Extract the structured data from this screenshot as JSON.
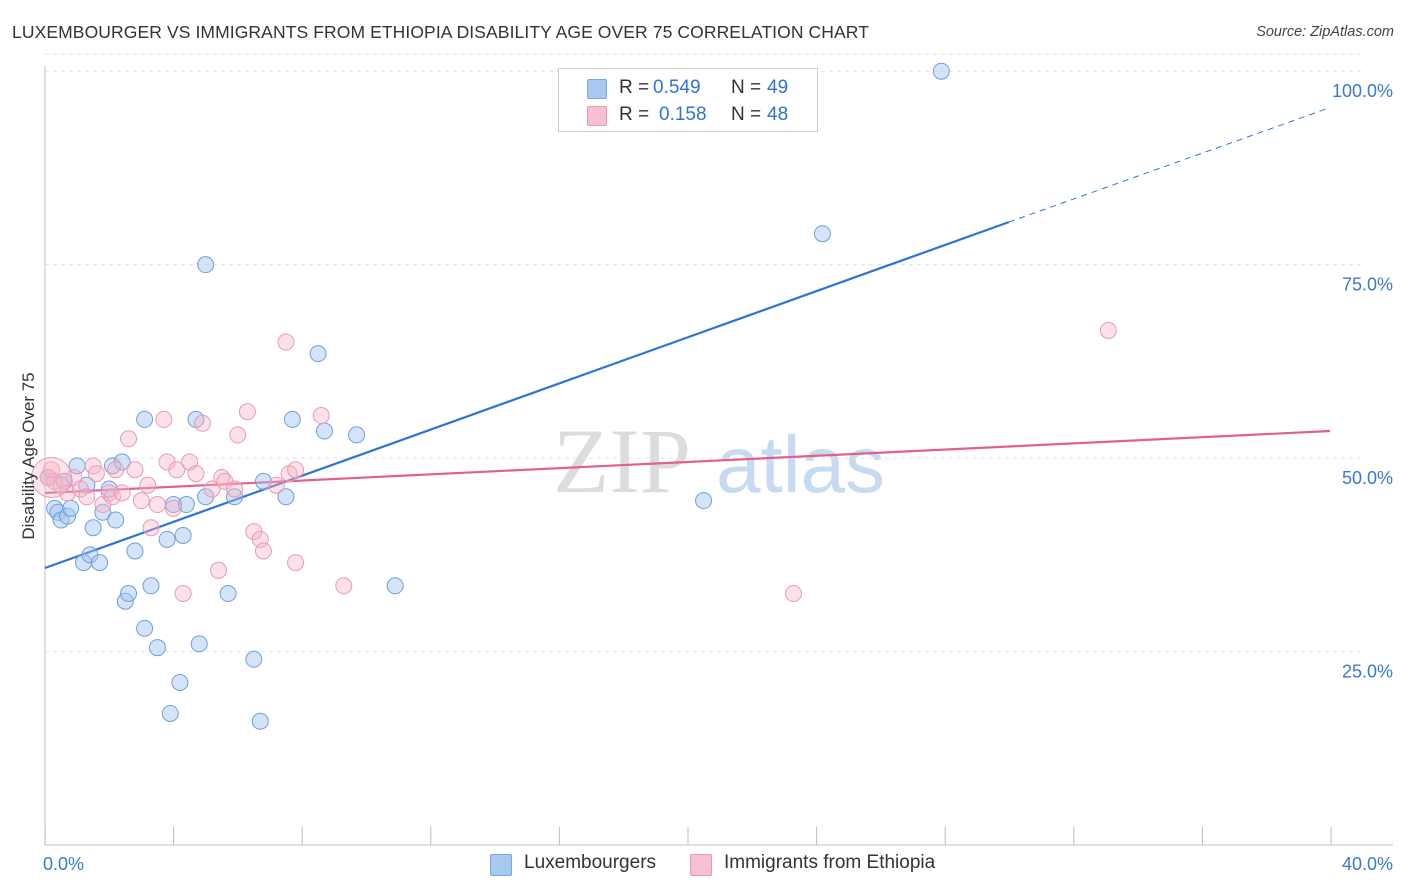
{
  "title": "LUXEMBOURGER VS IMMIGRANTS FROM ETHIOPIA DISABILITY AGE OVER 75 CORRELATION CHART",
  "source": "Source: ZipAtlas.com",
  "watermark": {
    "zip": "ZIP",
    "atlas": "atlas"
  },
  "legend": {
    "r_label": "R =",
    "n_label": "N =",
    "rows": [
      {
        "name": "Luxembourgers",
        "r": "0.549",
        "n": "49",
        "swatch": "#a9c8f0",
        "stroke": "#7aa7e0"
      },
      {
        "name": "Immigrants from Ethiopia",
        "r": "0.158",
        "n": "48",
        "swatch": "#f7bfd0",
        "stroke": "#e89ab3"
      }
    ]
  },
  "chart_data": {
    "type": "scatter",
    "title": "LUXEMBOURGER VS IMMIGRANTS FROM ETHIOPIA DISABILITY AGE OVER 75 CORRELATION CHART",
    "xlabel": "",
    "ylabel": "Disability Age Over 75",
    "xlim": [
      0,
      40
    ],
    "ylim": [
      0,
      103
    ],
    "x_tick_labels": [
      {
        "value": 0,
        "label": "0.0%"
      },
      {
        "value": 40,
        "label": "40.0%"
      }
    ],
    "y_tick_labels": [
      {
        "value": 25,
        "label": "25.0%"
      },
      {
        "value": 50,
        "label": "50.0%"
      },
      {
        "value": 75,
        "label": "75.0%"
      },
      {
        "value": 100,
        "label": "100.0%"
      }
    ],
    "series": [
      {
        "name": "Luxembourgers",
        "color": "#2f73d4",
        "fill": "rgba(160,195,240,0.45)",
        "stroke": "#6f9fdc",
        "r": 0.549,
        "n": 49,
        "trend": {
          "x0": 0,
          "y0": 35.8,
          "x1": 30,
          "y1": 80.5,
          "dash_to_x": 40,
          "dash_to_y": 95.3
        },
        "points": [
          [
            0.1,
            47.5
          ],
          [
            0.3,
            43.5
          ],
          [
            0.4,
            43.0
          ],
          [
            0.5,
            42.0
          ],
          [
            0.7,
            42.5
          ],
          [
            0.6,
            47.0
          ],
          [
            0.8,
            43.5
          ],
          [
            1.0,
            49.0
          ],
          [
            1.2,
            36.5
          ],
          [
            1.3,
            46.5
          ],
          [
            1.4,
            37.5
          ],
          [
            1.5,
            41.0
          ],
          [
            1.7,
            36.5
          ],
          [
            1.8,
            43.0
          ],
          [
            2.0,
            46.0
          ],
          [
            2.1,
            49.0
          ],
          [
            2.2,
            42.0
          ],
          [
            2.4,
            49.5
          ],
          [
            2.5,
            31.5
          ],
          [
            2.6,
            32.5
          ],
          [
            2.8,
            38.0
          ],
          [
            3.1,
            55.0
          ],
          [
            3.1,
            28.0
          ],
          [
            3.3,
            33.5
          ],
          [
            3.5,
            25.5
          ],
          [
            3.8,
            39.5
          ],
          [
            3.9,
            17.0
          ],
          [
            4.0,
            44.0
          ],
          [
            4.2,
            21.0
          ],
          [
            4.3,
            40.0
          ],
          [
            4.4,
            44.0
          ],
          [
            4.7,
            55.0
          ],
          [
            4.8,
            26.0
          ],
          [
            5.0,
            75.0
          ],
          [
            5.0,
            45.0
          ],
          [
            5.7,
            32.5
          ],
          [
            5.9,
            45.0
          ],
          [
            6.5,
            24.0
          ],
          [
            6.7,
            16.0
          ],
          [
            6.8,
            47.0
          ],
          [
            7.5,
            45.0
          ],
          [
            7.7,
            55.0
          ],
          [
            8.5,
            63.5
          ],
          [
            8.7,
            53.5
          ],
          [
            9.7,
            53.0
          ],
          [
            10.9,
            33.5
          ],
          [
            20.5,
            44.5
          ],
          [
            24.2,
            79.0
          ],
          [
            27.9,
            100.0
          ]
        ]
      },
      {
        "name": "Immigrants from Ethiopia",
        "color": "#e0608e",
        "fill": "rgba(247,180,200,0.40)",
        "stroke": "#e99ab4",
        "r": 0.158,
        "n": 48,
        "trend": {
          "x0": 0,
          "y0": 45.5,
          "x1": 40,
          "y1": 53.5
        },
        "points": [
          [
            0.1,
            47.5
          ],
          [
            0.3,
            47.0
          ],
          [
            0.5,
            46.5
          ],
          [
            0.7,
            45.5
          ],
          [
            0.9,
            47.5
          ],
          [
            1.1,
            46.0
          ],
          [
            1.3,
            45.0
          ],
          [
            1.5,
            49.0
          ],
          [
            1.6,
            48.0
          ],
          [
            1.8,
            44.0
          ],
          [
            2.0,
            45.5
          ],
          [
            2.1,
            45.0
          ],
          [
            2.2,
            48.5
          ],
          [
            2.4,
            45.5
          ],
          [
            2.6,
            52.5
          ],
          [
            2.8,
            48.5
          ],
          [
            3.0,
            44.5
          ],
          [
            3.2,
            46.5
          ],
          [
            3.3,
            41.0
          ],
          [
            3.5,
            44.0
          ],
          [
            3.7,
            55.0
          ],
          [
            3.8,
            49.5
          ],
          [
            4.0,
            43.5
          ],
          [
            4.1,
            48.5
          ],
          [
            4.3,
            32.5
          ],
          [
            4.5,
            49.5
          ],
          [
            4.7,
            48.0
          ],
          [
            4.9,
            54.5
          ],
          [
            5.2,
            46.0
          ],
          [
            5.4,
            35.5
          ],
          [
            5.5,
            47.5
          ],
          [
            5.6,
            47.0
          ],
          [
            5.9,
            46.0
          ],
          [
            6.0,
            53.0
          ],
          [
            6.3,
            56.0
          ],
          [
            6.5,
            40.5
          ],
          [
            6.7,
            39.5
          ],
          [
            6.8,
            38.0
          ],
          [
            7.2,
            46.5
          ],
          [
            7.5,
            65.0
          ],
          [
            7.6,
            48.0
          ],
          [
            7.8,
            48.5
          ],
          [
            7.8,
            36.5
          ],
          [
            8.6,
            55.5
          ],
          [
            9.3,
            33.5
          ],
          [
            23.3,
            32.5
          ],
          [
            33.1,
            66.5
          ],
          [
            0.2,
            48.5
          ]
        ]
      }
    ]
  }
}
